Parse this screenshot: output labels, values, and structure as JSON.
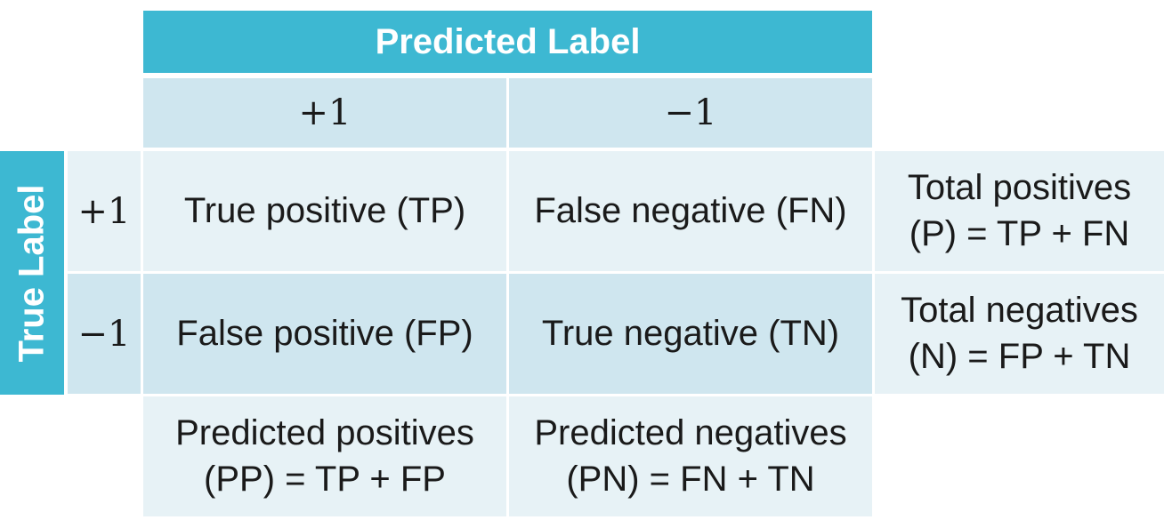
{
  "header": {
    "predicted_label": "Predicted Label",
    "true_label": "True Label"
  },
  "columns": {
    "pos": "+1",
    "neg": "−1"
  },
  "rows": {
    "pos": "+1",
    "neg": "−1"
  },
  "cells": {
    "tp": "True positive (TP)",
    "fn": "False negative (FN)",
    "fp": "False positive (FP)",
    "tn": "True negative (TN)"
  },
  "totals": {
    "positives": [
      "Total positives",
      "(P) = TP + FN"
    ],
    "negatives": [
      "Total negatives",
      "(N) = FP + TN"
    ],
    "predicted_positives": [
      "Predicted positives",
      "(PP) = TP + FP"
    ],
    "predicted_negatives": [
      "Predicted negatives",
      "(PN) = FN + TN"
    ]
  },
  "colors": {
    "header": "#3db8d2",
    "mid": "#cfe6ef",
    "light": "#e7f2f6"
  }
}
